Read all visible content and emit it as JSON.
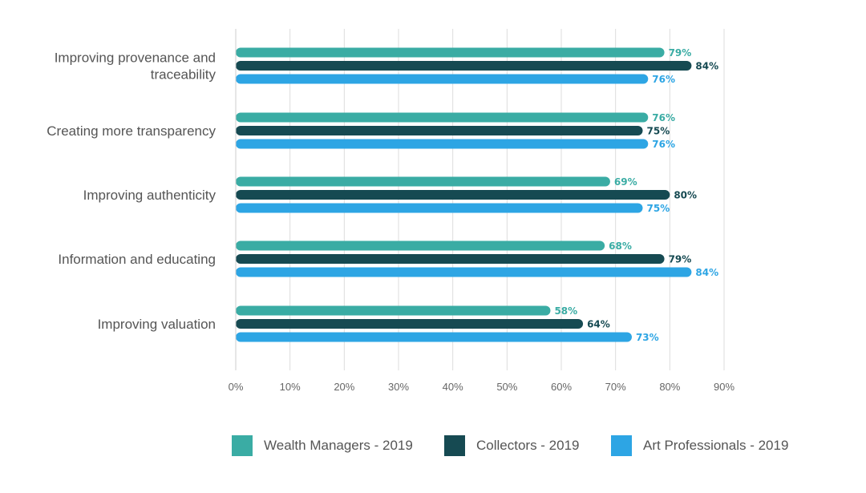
{
  "chart_data": {
    "type": "bar",
    "orientation": "horizontal",
    "categories": [
      [
        "Improving provenance and",
        "traceability"
      ],
      [
        "Creating more transparency"
      ],
      [
        "Improving authenticity"
      ],
      [
        "Information and educating"
      ],
      [
        "Improving valuation"
      ]
    ],
    "series": [
      {
        "name": "Wealth Managers - 2019",
        "color": "#3aaca4",
        "label_color": "#3aaca4",
        "values": [
          79,
          76,
          69,
          68,
          58
        ]
      },
      {
        "name": "Collectors - 2019",
        "color": "#164a52",
        "label_color": "#164a52",
        "values": [
          84,
          75,
          80,
          79,
          64
        ]
      },
      {
        "name": "Art Professionals - 2019",
        "color": "#2da5e4",
        "label_color": "#2da5e4",
        "values": [
          76,
          76,
          75,
          84,
          73
        ]
      }
    ],
    "value_suffix": "%",
    "xlim": [
      0,
      90
    ],
    "xticks": [
      "0%",
      "10%",
      "20%",
      "30%",
      "40%",
      "50%",
      "60%",
      "70%",
      "80%",
      "90%"
    ],
    "grid": true,
    "legend_position": "bottom"
  }
}
